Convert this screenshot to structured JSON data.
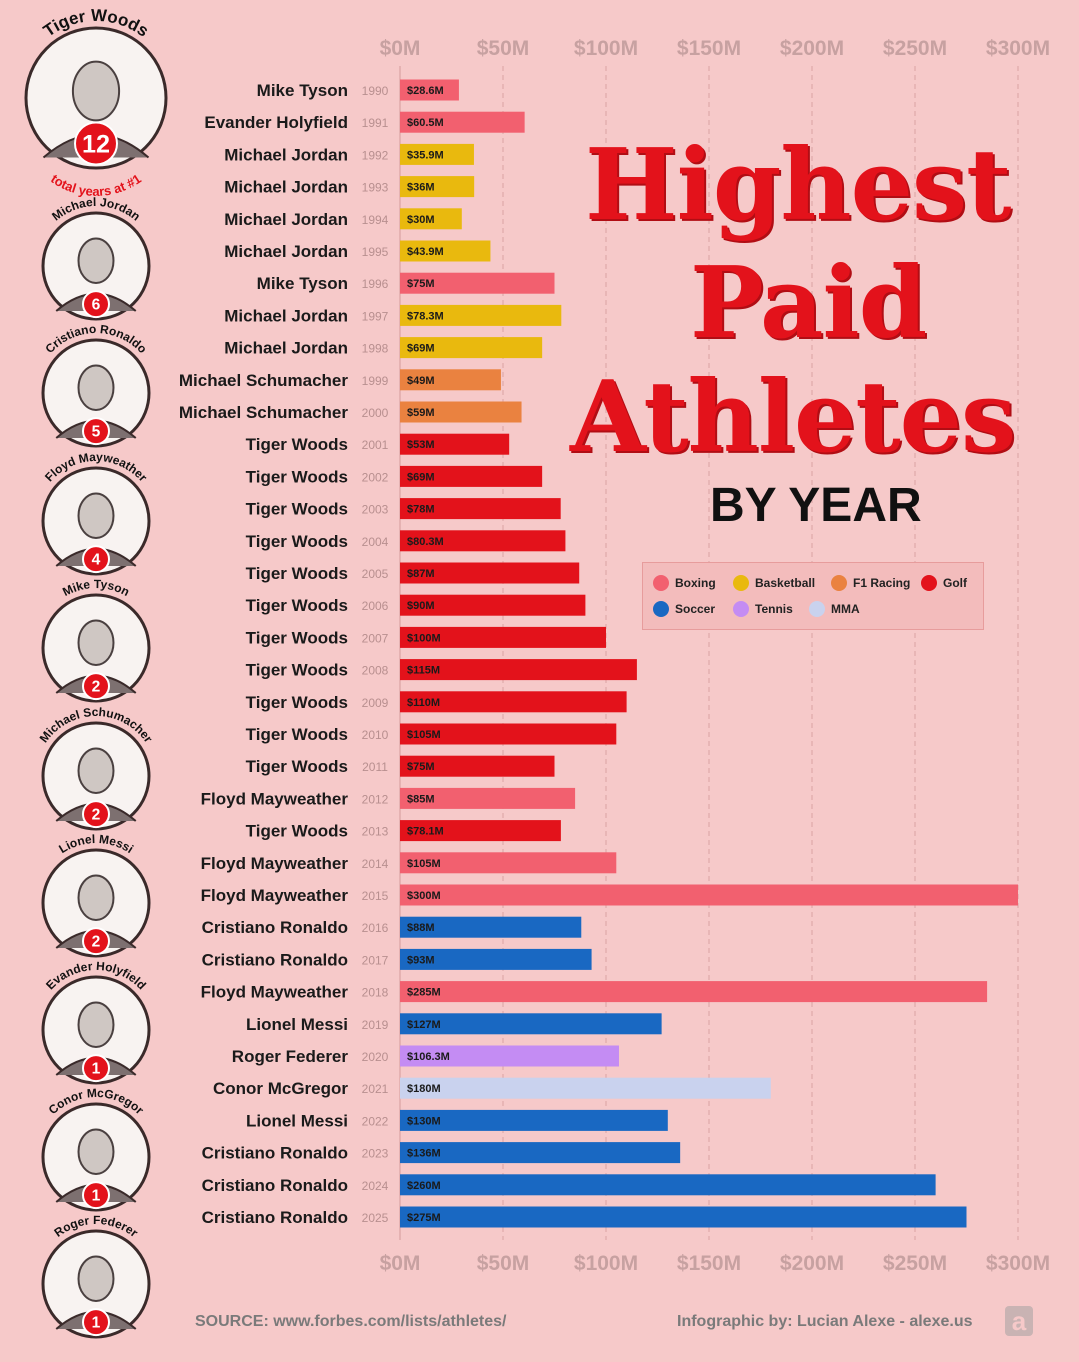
{
  "title": {
    "line1": "Highest",
    "line2": "Paid",
    "line3": "Athletes",
    "subtitle": "BY YEAR"
  },
  "colors": {
    "Boxing": "#f2606f",
    "Basketball": "#e9b90e",
    "F1 Racing": "#ea8240",
    "Golf": "#e3121b",
    "Soccer": "#1968c2",
    "Tennis": "#c48cf3",
    "MMA": "#c9d2ee"
  },
  "legend": [
    {
      "label": "Boxing",
      "sport": "Boxing"
    },
    {
      "label": "Basketball",
      "sport": "Basketball"
    },
    {
      "label": "F1 Racing",
      "sport": "F1 Racing"
    },
    {
      "label": "Golf",
      "sport": "Golf"
    },
    {
      "label": "Soccer",
      "sport": "Soccer"
    },
    {
      "label": "Tennis",
      "sport": "Tennis"
    },
    {
      "label": "MMA",
      "sport": "MMA"
    }
  ],
  "sidebar": {
    "athletes": [
      {
        "name": "Tiger Woods",
        "count": "12",
        "caption": "total years at #1"
      },
      {
        "name": "Michael Jordan",
        "count": "6"
      },
      {
        "name": "Cristiano Ronaldo",
        "count": "5"
      },
      {
        "name": "Floyd Mayweather",
        "count": "4"
      },
      {
        "name": "Mike Tyson",
        "count": "2"
      },
      {
        "name": "Michael Schumacher",
        "count": "2"
      },
      {
        "name": "Lionel Messi",
        "count": "2"
      },
      {
        "name": "Evander Holyfield",
        "count": "1"
      },
      {
        "name": "Conor McGregor",
        "count": "1"
      },
      {
        "name": "Roger Federer",
        "count": "1"
      }
    ]
  },
  "footer": {
    "source": "SOURCE: www.forbes.com/lists/athletes/",
    "credit": "Infographic by: Lucian Alexe - alexe.us",
    "logo": "a"
  },
  "chart_data": {
    "type": "bar",
    "orientation": "horizontal",
    "xlim": [
      0,
      300
    ],
    "ticks": [
      "$0M",
      "$50M",
      "$100M",
      "$150M",
      "$200M",
      "$250M",
      "$300M"
    ],
    "tick_values": [
      0,
      50,
      100,
      150,
      200,
      250,
      300
    ],
    "grid": true,
    "legend_position": "right",
    "rows": [
      {
        "athlete": "Mike Tyson",
        "year": "1990",
        "value": 28.6,
        "label": "$28.6M",
        "sport": "Boxing"
      },
      {
        "athlete": "Evander Holyfield",
        "year": "1991",
        "value": 60.5,
        "label": "$60.5M",
        "sport": "Boxing"
      },
      {
        "athlete": "Michael Jordan",
        "year": "1992",
        "value": 35.9,
        "label": "$35.9M",
        "sport": "Basketball"
      },
      {
        "athlete": "Michael Jordan",
        "year": "1993",
        "value": 36,
        "label": "$36M",
        "sport": "Basketball"
      },
      {
        "athlete": "Michael Jordan",
        "year": "1994",
        "value": 30,
        "label": "$30M",
        "sport": "Basketball"
      },
      {
        "athlete": "Michael Jordan",
        "year": "1995",
        "value": 43.9,
        "label": "$43.9M",
        "sport": "Basketball"
      },
      {
        "athlete": "Mike Tyson",
        "year": "1996",
        "value": 75,
        "label": "$75M",
        "sport": "Boxing"
      },
      {
        "athlete": "Michael Jordan",
        "year": "1997",
        "value": 78.3,
        "label": "$78.3M",
        "sport": "Basketball"
      },
      {
        "athlete": "Michael Jordan",
        "year": "1998",
        "value": 69,
        "label": "$69M",
        "sport": "Basketball"
      },
      {
        "athlete": "Michael Schumacher",
        "year": "1999",
        "value": 49,
        "label": "$49M",
        "sport": "F1 Racing"
      },
      {
        "athlete": "Michael Schumacher",
        "year": "2000",
        "value": 59,
        "label": "$59M",
        "sport": "F1 Racing"
      },
      {
        "athlete": "Tiger Woods",
        "year": "2001",
        "value": 53,
        "label": "$53M",
        "sport": "Golf"
      },
      {
        "athlete": "Tiger Woods",
        "year": "2002",
        "value": 69,
        "label": "$69M",
        "sport": "Golf"
      },
      {
        "athlete": "Tiger Woods",
        "year": "2003",
        "value": 78,
        "label": "$78M",
        "sport": "Golf"
      },
      {
        "athlete": "Tiger Woods",
        "year": "2004",
        "value": 80.3,
        "label": "$80.3M",
        "sport": "Golf"
      },
      {
        "athlete": "Tiger Woods",
        "year": "2005",
        "value": 87,
        "label": "$87M",
        "sport": "Golf"
      },
      {
        "athlete": "Tiger Woods",
        "year": "2006",
        "value": 90,
        "label": "$90M",
        "sport": "Golf"
      },
      {
        "athlete": "Tiger Woods",
        "year": "2007",
        "value": 100,
        "label": "$100M",
        "sport": "Golf"
      },
      {
        "athlete": "Tiger Woods",
        "year": "2008",
        "value": 115,
        "label": "$115M",
        "sport": "Golf"
      },
      {
        "athlete": "Tiger Woods",
        "year": "2009",
        "value": 110,
        "label": "$110M",
        "sport": "Golf"
      },
      {
        "athlete": "Tiger Woods",
        "year": "2010",
        "value": 105,
        "label": "$105M",
        "sport": "Golf"
      },
      {
        "athlete": "Tiger Woods",
        "year": "2011",
        "value": 75,
        "label": "$75M",
        "sport": "Golf"
      },
      {
        "athlete": "Floyd Mayweather",
        "year": "2012",
        "value": 85,
        "label": "$85M",
        "sport": "Boxing"
      },
      {
        "athlete": "Tiger Woods",
        "year": "2013",
        "value": 78.1,
        "label": "$78.1M",
        "sport": "Golf"
      },
      {
        "athlete": "Floyd Mayweather",
        "year": "2014",
        "value": 105,
        "label": "$105M",
        "sport": "Boxing"
      },
      {
        "athlete": "Floyd Mayweather",
        "year": "2015",
        "value": 300,
        "label": "$300M",
        "sport": "Boxing"
      },
      {
        "athlete": "Cristiano Ronaldo",
        "year": "2016",
        "value": 88,
        "label": "$88M",
        "sport": "Soccer"
      },
      {
        "athlete": "Cristiano Ronaldo",
        "year": "2017",
        "value": 93,
        "label": "$93M",
        "sport": "Soccer"
      },
      {
        "athlete": "Floyd Mayweather",
        "year": "2018",
        "value": 285,
        "label": "$285M",
        "sport": "Boxing"
      },
      {
        "athlete": "Lionel Messi",
        "year": "2019",
        "value": 127,
        "label": "$127M",
        "sport": "Soccer"
      },
      {
        "athlete": "Roger Federer",
        "year": "2020",
        "value": 106.3,
        "label": "$106.3M",
        "sport": "Tennis"
      },
      {
        "athlete": "Conor McGregor",
        "year": "2021",
        "value": 180,
        "label": "$180M",
        "sport": "MMA"
      },
      {
        "athlete": "Lionel Messi",
        "year": "2022",
        "value": 130,
        "label": "$130M",
        "sport": "Soccer"
      },
      {
        "athlete": "Cristiano Ronaldo",
        "year": "2023",
        "value": 136,
        "label": "$136M",
        "sport": "Soccer"
      },
      {
        "athlete": "Cristiano Ronaldo",
        "year": "2024",
        "value": 260,
        "label": "$260M",
        "sport": "Soccer"
      },
      {
        "athlete": "Cristiano Ronaldo",
        "year": "2025",
        "value": 275,
        "label": "$275M",
        "sport": "Soccer"
      }
    ]
  }
}
